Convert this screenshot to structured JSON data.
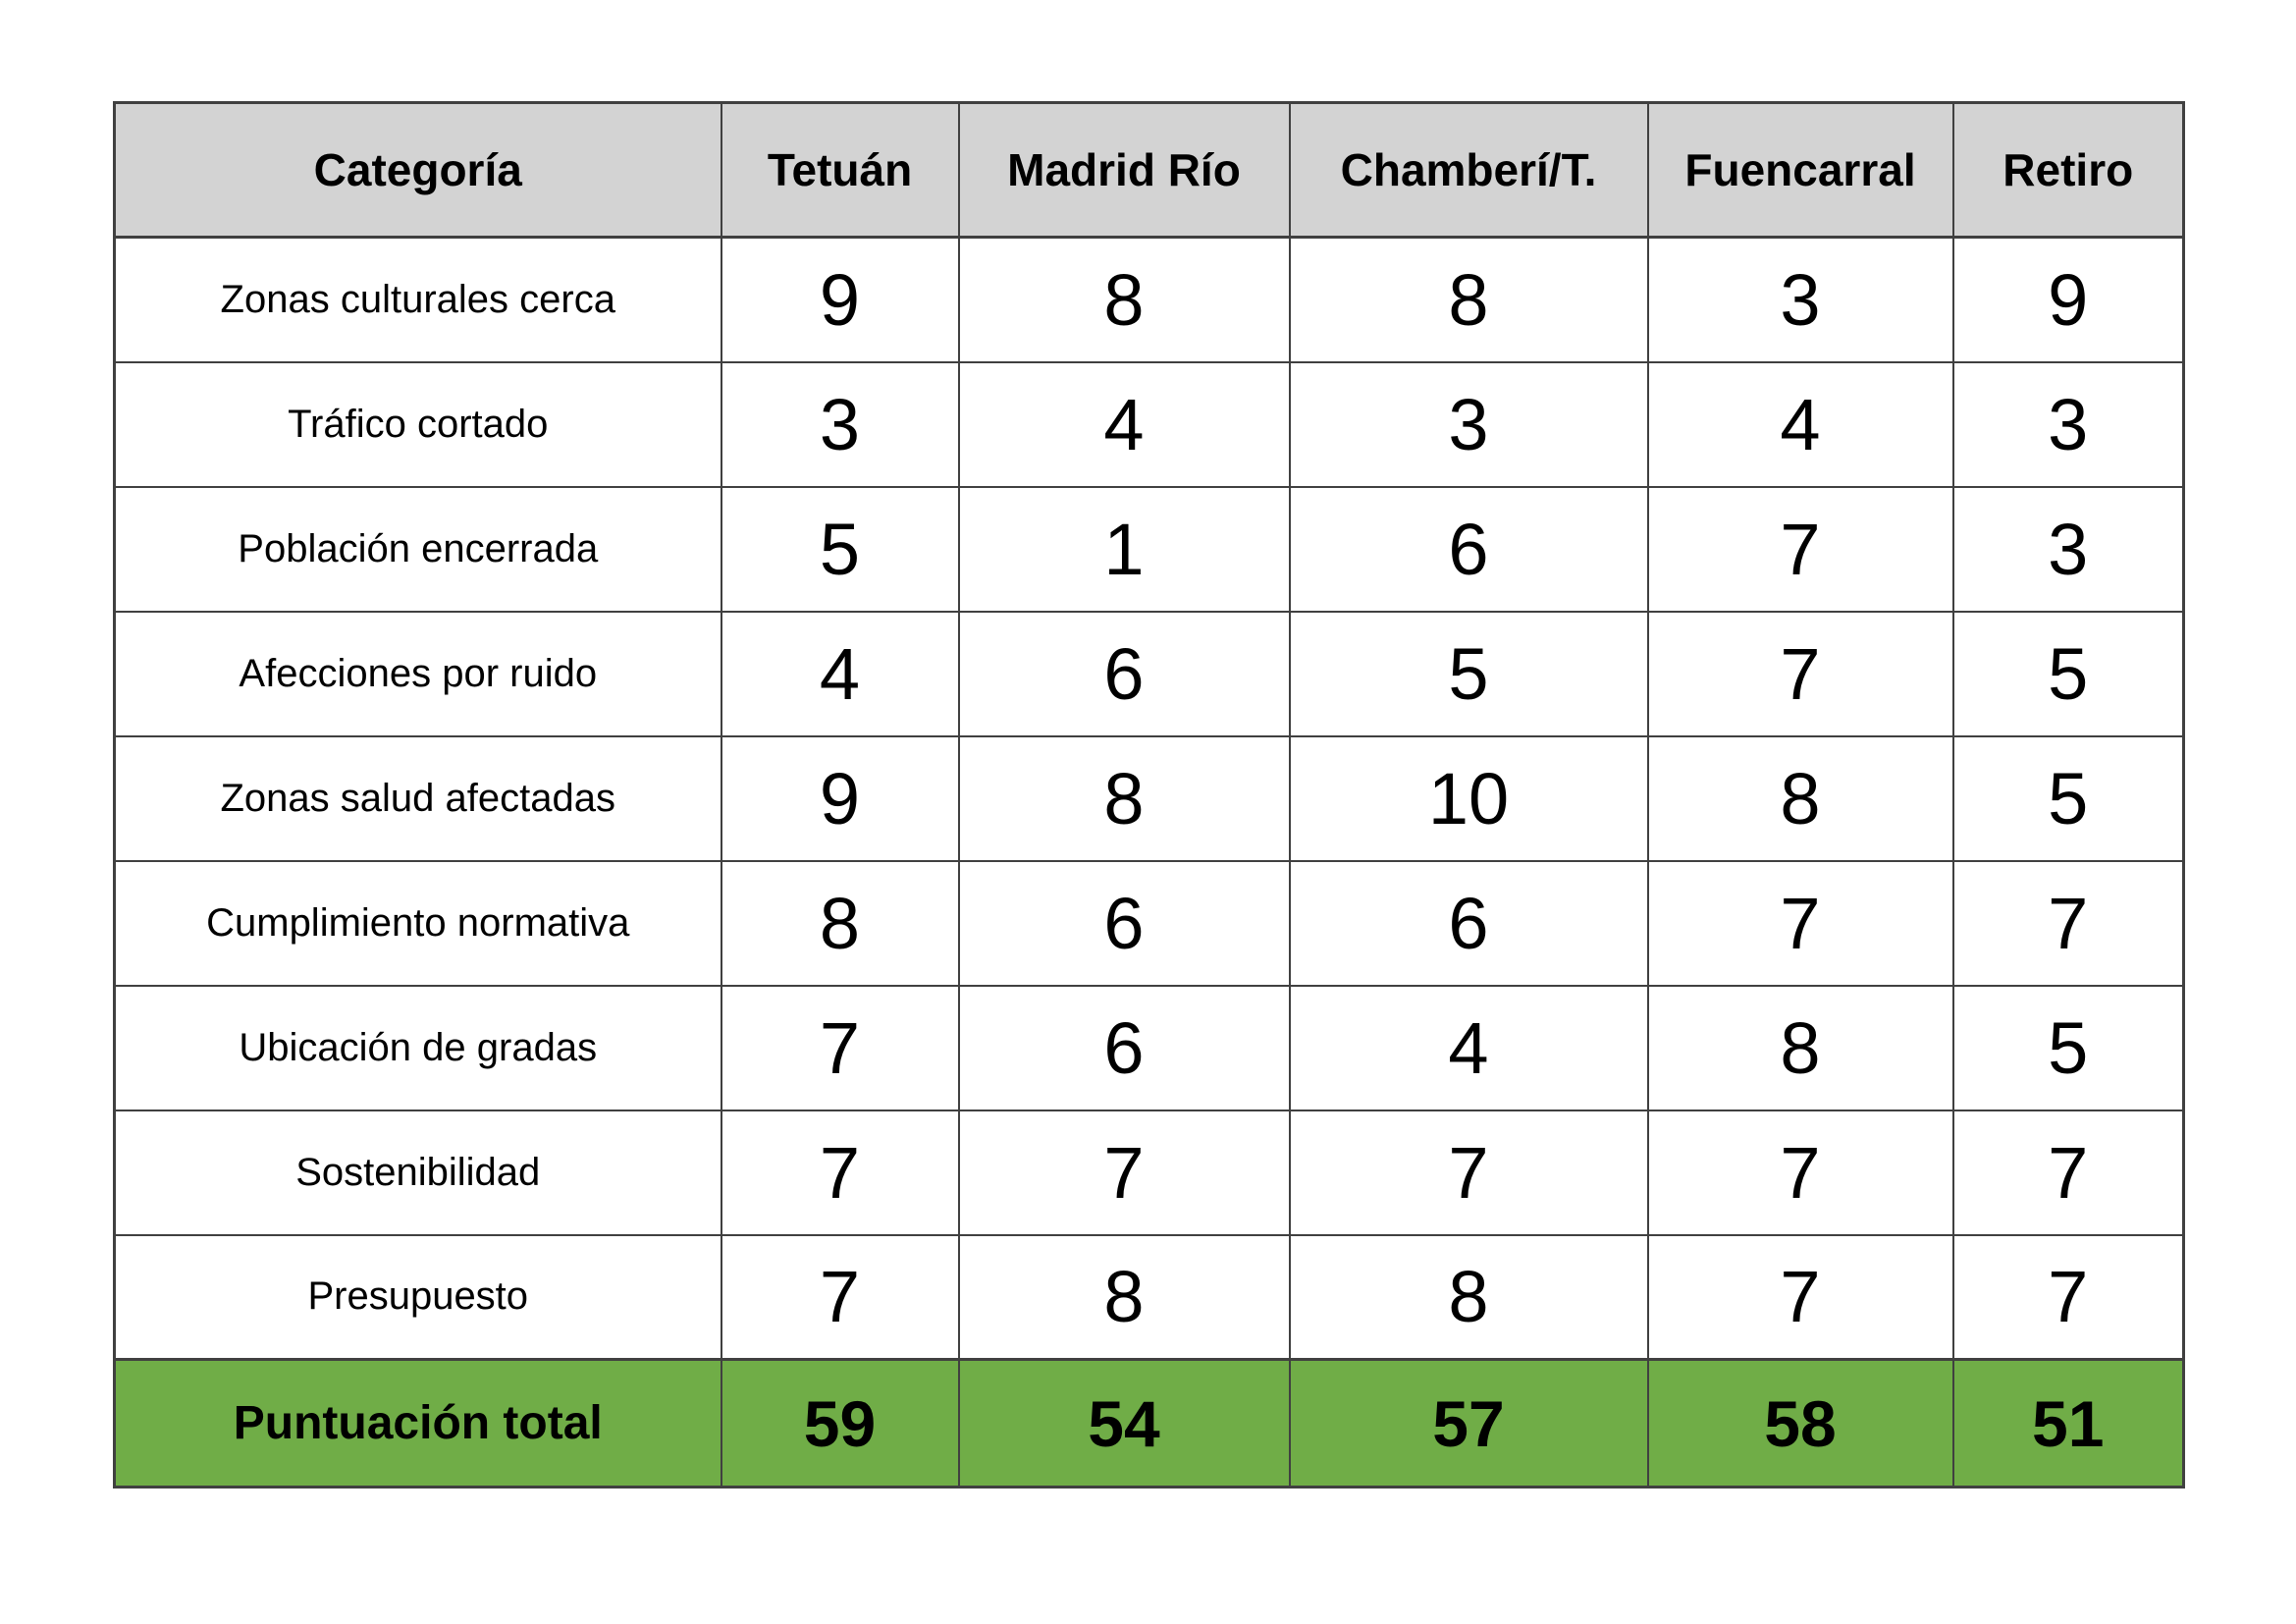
{
  "chart_data": {
    "type": "table",
    "columns": [
      "Categoría",
      "Tetuán",
      "Madrid Río",
      "Chamberí/T.",
      "Fuencarral",
      "Retiro"
    ],
    "rows": [
      {
        "label": "Zonas culturales cerca",
        "values": [
          9,
          8,
          8,
          3,
          9
        ]
      },
      {
        "label": "Tráfico cortado",
        "values": [
          3,
          4,
          3,
          4,
          3
        ]
      },
      {
        "label": "Población encerrada",
        "values": [
          5,
          1,
          6,
          7,
          3
        ]
      },
      {
        "label": "Afecciones por ruido",
        "values": [
          4,
          6,
          5,
          7,
          5
        ]
      },
      {
        "label": "Zonas salud afectadas",
        "values": [
          9,
          8,
          10,
          8,
          5
        ]
      },
      {
        "label": "Cumplimiento normativa",
        "values": [
          8,
          6,
          6,
          7,
          7
        ]
      },
      {
        "label": "Ubicación de gradas",
        "values": [
          7,
          6,
          4,
          8,
          5
        ]
      },
      {
        "label": "Sostenibilidad",
        "values": [
          7,
          7,
          7,
          7,
          7
        ]
      },
      {
        "label": "Presupuesto",
        "values": [
          7,
          8,
          8,
          7,
          7
        ]
      }
    ],
    "total_row": {
      "label": "Puntuación total",
      "values": [
        59,
        54,
        57,
        58,
        51
      ]
    },
    "colors": {
      "header_bg": "#d3d3d3",
      "total_bg": "#70ad47",
      "border": "#404040",
      "text": "#000000",
      "page_bg": "#ffffff"
    }
  }
}
